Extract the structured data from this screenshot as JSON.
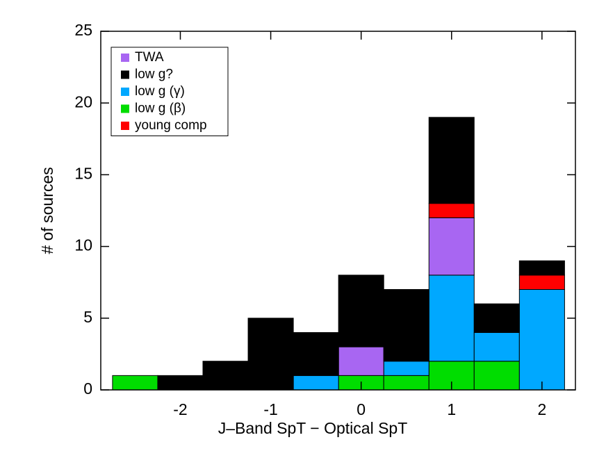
{
  "chart_data": {
    "type": "histogram",
    "xlabel": "J–Band SpT − Optical SpT",
    "ylabel": "# of sources",
    "bins": [
      -2.75,
      -2.25,
      -1.75,
      -1.25,
      -0.75,
      -0.25,
      0.25,
      0.75,
      1.25,
      1.75,
      2.25
    ],
    "series": [
      {
        "name": "TWA",
        "color": "#a866f2",
        "values": [
          0,
          0,
          0,
          0,
          0,
          2,
          0,
          4,
          0,
          0
        ]
      },
      {
        "name": "low g?",
        "color": "#000000",
        "values": [
          0,
          1,
          2,
          5,
          3,
          5,
          5,
          6,
          2,
          1
        ]
      },
      {
        "name": "low g (γ)",
        "color": "#00a8ff",
        "values": [
          0,
          0,
          0,
          0,
          1,
          0,
          1,
          6,
          2,
          7
        ]
      },
      {
        "name": "low g (β)",
        "color": "#00dd00",
        "values": [
          1,
          0,
          0,
          0,
          0,
          1,
          1,
          2,
          2,
          0
        ]
      },
      {
        "name": "young comp",
        "color": "#ff0000",
        "values": [
          0,
          0,
          0,
          0,
          0,
          0,
          0,
          1,
          0,
          1
        ]
      }
    ],
    "stacked": true,
    "xlim": [
      -2.88,
      2.37
    ],
    "xticks": [
      -2,
      -1,
      0,
      1,
      2
    ],
    "ylim": [
      0,
      25
    ],
    "yticks": [
      0,
      5,
      10,
      15,
      20,
      25
    ],
    "legend": "upper left"
  }
}
